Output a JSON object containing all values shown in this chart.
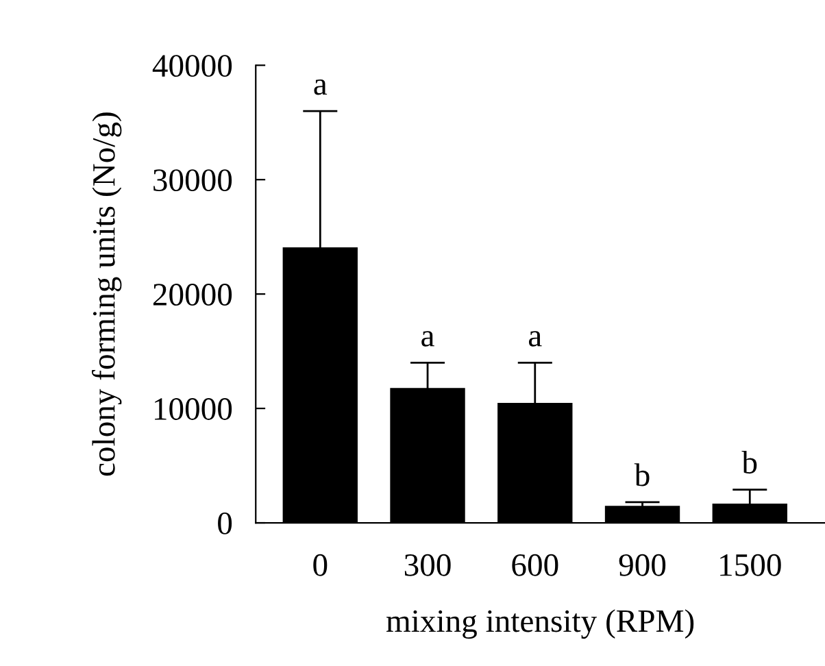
{
  "chart_data": {
    "type": "bar",
    "xlabel": "mixing intensity (RPM)",
    "ylabel": "colony forming units (No/g)",
    "categories": [
      "0",
      "300",
      "600",
      "900",
      "1500"
    ],
    "values": [
      24000,
      11700,
      10400,
      1400,
      1600
    ],
    "errors": [
      12000,
      2300,
      3600,
      400,
      1300
    ],
    "color": "#000000",
    "ylim": [
      0,
      40000
    ],
    "yticks": [
      0,
      10000,
      20000,
      30000,
      40000
    ],
    "grid": false,
    "annotations": [
      {
        "text": "a",
        "x": "0",
        "y": 36000
      },
      {
        "text": "a",
        "x": "300",
        "y": 14000
      },
      {
        "text": "a",
        "x": "600",
        "y": 14000
      },
      {
        "text": "b",
        "x": "900",
        "y": 1800
      },
      {
        "text": "b",
        "x": "1500",
        "y": 2900
      }
    ]
  }
}
